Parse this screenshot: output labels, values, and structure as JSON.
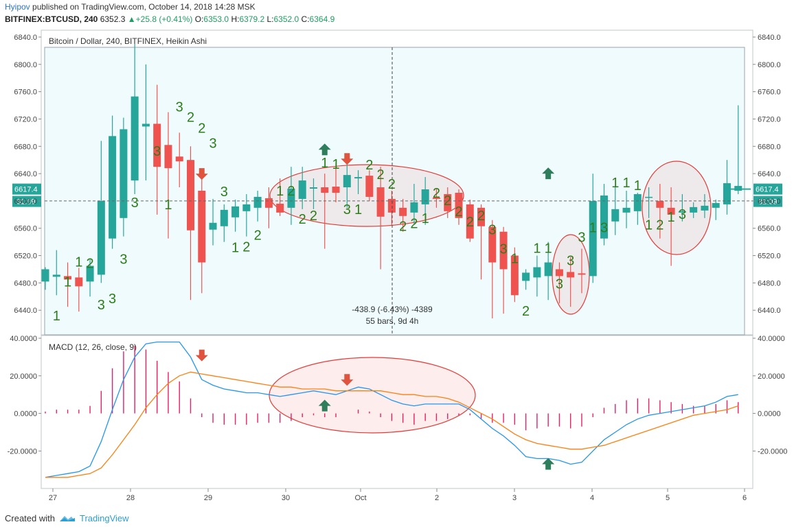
{
  "header": {
    "author": "Hyipov",
    "published_text": "published on TradingView.com, October 14, 2018 14:28 MSK",
    "symbol": "BITFINEX:BTCUSD, 240",
    "last": "6352.3",
    "change": "+25.8 (+0.41%)",
    "open_label": "O:",
    "open": "6353.0",
    "high_label": "H:",
    "high": "6379.2",
    "low_label": "L:",
    "low": "6352.0",
    "close_label": "C:",
    "close": "6364.9"
  },
  "footer": {
    "created_with": "Created with",
    "brand": "TradingView"
  },
  "colors": {
    "up": "#26a69a",
    "down": "#ef5350",
    "macd": "#2196f3",
    "signal": "#ff7f0e",
    "hist": "#e91e63",
    "bg": "#effbfc",
    "count": "#2e7d1b",
    "arrow_up": "#2e7d5b",
    "arrow_down": "#e0533e"
  },
  "chart_data": [
    {
      "type": "candlestick",
      "title": "Bitcoin / Dollar, 240, BITFINEX, Heikin Ashi",
      "ylim": [
        6410,
        6850
      ],
      "y_ticks": [
        "6840.0",
        "6800.0",
        "6760.0",
        "6720.0",
        "6680.0",
        "6640.0",
        "6600.0",
        "6560.0",
        "6520.0",
        "6480.0",
        "6440.0"
      ],
      "x_ticks": [
        "27",
        "28",
        "29",
        "30",
        "Oct",
        "2",
        "3",
        "4",
        "5",
        "6"
      ],
      "current_price_label": "6617.4",
      "countdown_label": "31:09",
      "crosshair_price": 6600,
      "measure_text": "-438.9 (-6.43%) -4389",
      "measure_bars": "55 bars, 9d 4h",
      "candles": [
        {
          "o": 6482,
          "h": 6503,
          "l": 6470,
          "c": 6500
        },
        {
          "o": 6489,
          "h": 6528,
          "l": 6462,
          "c": 6492
        },
        {
          "o": 6490,
          "h": 6510,
          "l": 6445,
          "c": 6485
        },
        {
          "o": 6488,
          "h": 6502,
          "l": 6438,
          "c": 6475
        },
        {
          "o": 6482,
          "h": 6515,
          "l": 6460,
          "c": 6505
        },
        {
          "o": 6492,
          "h": 6688,
          "l": 6480,
          "c": 6600
        },
        {
          "o": 6545,
          "h": 6725,
          "l": 6530,
          "c": 6695
        },
        {
          "o": 6575,
          "h": 6722,
          "l": 6548,
          "c": 6705
        },
        {
          "o": 6630,
          "h": 6830,
          "l": 6610,
          "c": 6753
        },
        {
          "o": 6709,
          "h": 6800,
          "l": 6630,
          "c": 6713
        },
        {
          "o": 6713,
          "h": 6770,
          "l": 6580,
          "c": 6650
        },
        {
          "o": 6682,
          "h": 6730,
          "l": 6545,
          "c": 6648
        },
        {
          "o": 6665,
          "h": 6700,
          "l": 6620,
          "c": 6658
        },
        {
          "o": 6660,
          "h": 6680,
          "l": 6455,
          "c": 6557
        },
        {
          "o": 6615,
          "h": 6640,
          "l": 6465,
          "c": 6510
        },
        {
          "o": 6558,
          "h": 6603,
          "l": 6535,
          "c": 6568
        },
        {
          "o": 6563,
          "h": 6595,
          "l": 6540,
          "c": 6587
        },
        {
          "o": 6576,
          "h": 6602,
          "l": 6555,
          "c": 6592
        },
        {
          "o": 6585,
          "h": 6610,
          "l": 6548,
          "c": 6595
        },
        {
          "o": 6590,
          "h": 6615,
          "l": 6570,
          "c": 6606
        },
        {
          "o": 6604,
          "h": 6620,
          "l": 6560,
          "c": 6590
        },
        {
          "o": 6596,
          "h": 6633,
          "l": 6578,
          "c": 6583
        },
        {
          "o": 6590,
          "h": 6650,
          "l": 6565,
          "c": 6618
        },
        {
          "o": 6603,
          "h": 6650,
          "l": 6588,
          "c": 6630
        },
        {
          "o": 6618,
          "h": 6633,
          "l": 6588,
          "c": 6620
        },
        {
          "o": 6620,
          "h": 6640,
          "l": 6530,
          "c": 6612
        },
        {
          "o": 6621,
          "h": 6655,
          "l": 6598,
          "c": 6612
        },
        {
          "o": 6620,
          "h": 6660,
          "l": 6590,
          "c": 6638
        },
        {
          "o": 6633,
          "h": 6645,
          "l": 6610,
          "c": 6635
        },
        {
          "o": 6637,
          "h": 6645,
          "l": 6600,
          "c": 6606
        },
        {
          "o": 6620,
          "h": 6650,
          "l": 6500,
          "c": 6577
        },
        {
          "o": 6603,
          "h": 6615,
          "l": 6565,
          "c": 6583
        },
        {
          "o": 6590,
          "h": 6603,
          "l": 6555,
          "c": 6578
        },
        {
          "o": 6583,
          "h": 6625,
          "l": 6565,
          "c": 6598
        },
        {
          "o": 6595,
          "h": 6635,
          "l": 6565,
          "c": 6617
        },
        {
          "o": 6605,
          "h": 6618,
          "l": 6590,
          "c": 6603
        },
        {
          "o": 6610,
          "h": 6620,
          "l": 6575,
          "c": 6585
        },
        {
          "o": 6612,
          "h": 6617,
          "l": 6565,
          "c": 6575
        },
        {
          "o": 6595,
          "h": 6602,
          "l": 6540,
          "c": 6545
        },
        {
          "o": 6590,
          "h": 6595,
          "l": 6485,
          "c": 6563
        },
        {
          "o": 6562,
          "h": 6572,
          "l": 6428,
          "c": 6510
        },
        {
          "o": 6555,
          "h": 6562,
          "l": 6435,
          "c": 6500
        },
        {
          "o": 6520,
          "h": 6532,
          "l": 6452,
          "c": 6462
        },
        {
          "o": 6483,
          "h": 6500,
          "l": 6470,
          "c": 6495
        },
        {
          "o": 6488,
          "h": 6520,
          "l": 6460,
          "c": 6503
        },
        {
          "o": 6490,
          "h": 6540,
          "l": 6455,
          "c": 6510
        },
        {
          "o": 6500,
          "h": 6510,
          "l": 6450,
          "c": 6490
        },
        {
          "o": 6496,
          "h": 6518,
          "l": 6445,
          "c": 6488
        },
        {
          "o": 6494,
          "h": 6530,
          "l": 6465,
          "c": 6492
        },
        {
          "o": 6490,
          "h": 6640,
          "l": 6480,
          "c": 6600
        },
        {
          "o": 6545,
          "h": 6625,
          "l": 6535,
          "c": 6608
        },
        {
          "o": 6570,
          "h": 6620,
          "l": 6550,
          "c": 6588
        },
        {
          "o": 6583,
          "h": 6615,
          "l": 6560,
          "c": 6590
        },
        {
          "o": 6585,
          "h": 6612,
          "l": 6565,
          "c": 6610
        },
        {
          "o": 6605,
          "h": 6620,
          "l": 6575,
          "c": 6606
        },
        {
          "o": 6600,
          "h": 6625,
          "l": 6545,
          "c": 6590
        },
        {
          "o": 6590,
          "h": 6620,
          "l": 6505,
          "c": 6580
        },
        {
          "o": 6583,
          "h": 6610,
          "l": 6570,
          "c": 6585
        },
        {
          "o": 6583,
          "h": 6598,
          "l": 6575,
          "c": 6591
        },
        {
          "o": 6586,
          "h": 6610,
          "l": 6575,
          "c": 6593
        },
        {
          "o": 6590,
          "h": 6602,
          "l": 6572,
          "c": 6597
        },
        {
          "o": 6595,
          "h": 6660,
          "l": 6580,
          "c": 6626
        },
        {
          "o": 6615,
          "h": 6740,
          "l": 6610,
          "c": 6622
        }
      ],
      "count_labels": [
        {
          "t": "1",
          "i": 1,
          "v": 6425
        },
        {
          "t": "1",
          "i": 2,
          "v": 6475
        },
        {
          "t": "1",
          "i": 3,
          "v": 6504
        },
        {
          "t": "2",
          "i": 4,
          "v": 6502
        },
        {
          "t": "3",
          "i": 5,
          "v": 6441
        },
        {
          "t": "3",
          "i": 6,
          "v": 6450
        },
        {
          "t": "3",
          "i": 7,
          "v": 6508
        },
        {
          "t": "3",
          "i": 8,
          "v": 6591
        },
        {
          "t": "3",
          "i": 10,
          "v": 6666
        },
        {
          "t": "1",
          "i": 11,
          "v": 6588
        },
        {
          "t": "3",
          "i": 12,
          "v": 6731
        },
        {
          "t": "2",
          "i": 13,
          "v": 6716
        },
        {
          "t": "2",
          "i": 14,
          "v": 6700
        },
        {
          "t": "3",
          "i": 15,
          "v": 6678
        },
        {
          "t": "3",
          "i": 16,
          "v": 6607
        },
        {
          "t": "1",
          "i": 17,
          "v": 6525
        },
        {
          "t": "2",
          "i": 18,
          "v": 6526
        },
        {
          "t": "2",
          "i": 19,
          "v": 6543
        },
        {
          "t": "1",
          "i": 21,
          "v": 6608
        },
        {
          "t": "2",
          "i": 22,
          "v": 6608
        },
        {
          "t": "2",
          "i": 23,
          "v": 6567
        },
        {
          "t": "2",
          "i": 24,
          "v": 6572
        },
        {
          "t": "1",
          "i": 25,
          "v": 6649
        },
        {
          "t": "1",
          "i": 26,
          "v": 6647
        },
        {
          "t": "3",
          "i": 27,
          "v": 6581
        },
        {
          "t": "1",
          "i": 28,
          "v": 6581
        },
        {
          "t": "2",
          "i": 29,
          "v": 6646
        },
        {
          "t": "2",
          "i": 30,
          "v": 6632
        },
        {
          "t": "2",
          "i": 31,
          "v": 6618
        },
        {
          "t": "2",
          "i": 32,
          "v": 6556
        },
        {
          "t": "2",
          "i": 33,
          "v": 6560
        },
        {
          "t": "1",
          "i": 34,
          "v": 6568
        },
        {
          "t": "2",
          "i": 35,
          "v": 6605
        },
        {
          "t": "2",
          "i": 36,
          "v": 6594
        },
        {
          "t": "2",
          "i": 37,
          "v": 6578
        },
        {
          "t": "2",
          "i": 38,
          "v": 6563
        },
        {
          "t": "2",
          "i": 39,
          "v": 6572
        },
        {
          "t": "3",
          "i": 40,
          "v": 6551
        },
        {
          "t": "3",
          "i": 41,
          "v": 6523
        },
        {
          "t": "1",
          "i": 42,
          "v": 6509
        },
        {
          "t": "2",
          "i": 43,
          "v": 6432
        },
        {
          "t": "1",
          "i": 44,
          "v": 6524
        },
        {
          "t": "1",
          "i": 45,
          "v": 6524
        },
        {
          "t": "3",
          "i": 46,
          "v": 6472
        },
        {
          "t": "3",
          "i": 47,
          "v": 6506
        },
        {
          "t": "3",
          "i": 48,
          "v": 6540
        },
        {
          "t": "1",
          "i": 49,
          "v": 6554
        },
        {
          "t": "3",
          "i": 50,
          "v": 6554
        },
        {
          "t": "1",
          "i": 51,
          "v": 6620
        },
        {
          "t": "1",
          "i": 52,
          "v": 6620
        },
        {
          "t": "1",
          "i": 53,
          "v": 6616
        },
        {
          "t": "1",
          "i": 54,
          "v": 6558
        },
        {
          "t": "2",
          "i": 55,
          "v": 6558
        },
        {
          "t": "1",
          "i": 56,
          "v": 6570
        },
        {
          "t": "3",
          "i": 57,
          "v": 6574
        }
      ],
      "arrows": [
        {
          "dir": "down",
          "i": 14,
          "v": 6640
        },
        {
          "dir": "up",
          "i": 25,
          "v": 6675
        },
        {
          "dir": "down",
          "i": 27,
          "v": 6662
        },
        {
          "dir": "up",
          "i": 45,
          "v": 6640
        }
      ]
    },
    {
      "type": "line",
      "title": "MACD (12, 26, close, 9)",
      "ylim": [
        -40,
        40
      ],
      "y_ticks": [
        "40.0000",
        "20.0000",
        "0.0000",
        "-20.0000"
      ],
      "series": [
        {
          "values": [
            -34,
            -33,
            -32,
            -31,
            -28,
            -15,
            2,
            18,
            30,
            37,
            38,
            38,
            38,
            30,
            18,
            15,
            13,
            12,
            11,
            11,
            10,
            9,
            10,
            11,
            12,
            11,
            10,
            12,
            14,
            13,
            10,
            7,
            5,
            4,
            5,
            5,
            5,
            5,
            2,
            -3,
            -8,
            -12,
            -17,
            -23,
            -24,
            -24,
            -25,
            -27,
            -26,
            -20,
            -14,
            -10,
            -6,
            -3,
            -1,
            0,
            1,
            2,
            3,
            4,
            6,
            9,
            10
          ]
        },
        {
          "values": [
            -34,
            -34,
            -34,
            -33,
            -32,
            -29,
            -22,
            -14,
            -6,
            3,
            10,
            16,
            20,
            22,
            21,
            20,
            19,
            18,
            17,
            16,
            15,
            14,
            14,
            13,
            13,
            13,
            12,
            12,
            12,
            12,
            12,
            11,
            10,
            10,
            9,
            9,
            8,
            6,
            3,
            0,
            -3,
            -7,
            -11,
            -14,
            -16,
            -17,
            -18,
            -19,
            -19,
            -18,
            -17,
            -15,
            -13,
            -11,
            -9,
            -7,
            -5,
            -3,
            -1,
            0,
            1,
            2,
            4
          ]
        },
        {
          "values": [
            1,
            2,
            2,
            2,
            4,
            12,
            24,
            33,
            36,
            34,
            28,
            22,
            17,
            8,
            -2,
            -5,
            -6,
            -6,
            -6,
            -5,
            -5,
            -5,
            -4,
            -2,
            -1,
            -2,
            -2,
            0,
            2,
            1,
            -2,
            -4,
            -5,
            -6,
            -4,
            -4,
            -3,
            -1,
            -1,
            -3,
            -5,
            -5,
            -6,
            -9,
            -8,
            -7,
            -7,
            -8,
            -7,
            -2,
            3,
            5,
            7,
            8,
            8,
            7,
            6,
            5,
            4,
            4,
            5,
            7,
            6
          ]
        }
      ],
      "arrows": [
        {
          "dir": "down",
          "i": 14,
          "v": 31
        },
        {
          "dir": "up",
          "i": 25,
          "v": 4
        },
        {
          "dir": "down",
          "i": 27,
          "v": 18
        },
        {
          "dir": "up",
          "i": 45,
          "v": -27
        }
      ]
    }
  ]
}
